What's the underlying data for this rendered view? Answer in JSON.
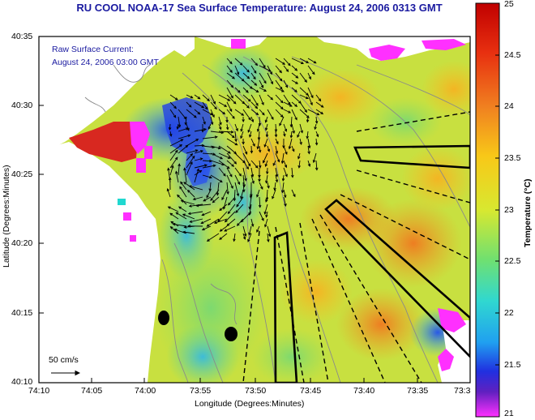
{
  "title": "RU COOL  NOAA-17  Sea Surface Temperature:  August 24, 2006 0313 GMT",
  "annotation": {
    "line1": "Raw Surface Current:",
    "line2": "August 24, 2006 03:00 GMT"
  },
  "scale_arrow": {
    "label": "50 cm/s"
  },
  "axes": {
    "xlabel": "Longitude (Degrees:Minutes)",
    "ylabel": "Latitude (Degrees:Minutes)",
    "xticks": [
      "74:10",
      "74:05",
      "74:00",
      "73:55",
      "73:50",
      "73:45",
      "73:40",
      "73:35",
      "73:3"
    ],
    "yticks": [
      "40:35",
      "40:30",
      "40:25",
      "40:20",
      "40:15",
      "40:10"
    ]
  },
  "colorbar": {
    "label": "Temperature (°C)",
    "ticks": [
      "25",
      "24.5",
      "24",
      "23.5",
      "23",
      "22.5",
      "22",
      "21.5",
      "21"
    ]
  },
  "colors": {
    "land": "#ffffff",
    "title_text": "#1a1aa0",
    "ocean_mid": "#c8e040"
  }
}
